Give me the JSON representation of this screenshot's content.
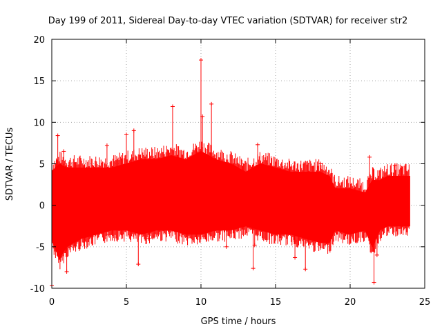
{
  "chart_data": {
    "type": "scatter",
    "title": "Day 199 of 2011, Sidereal Day-to-day VTEC variation (SDTVAR) for receiver str2",
    "xlabel": "GPS time / hours",
    "ylabel": "SDTVAR / TECUs",
    "xlim": [
      0,
      25
    ],
    "ylim": [
      -10,
      20
    ],
    "xticks": [
      0,
      5,
      10,
      15,
      20,
      25
    ],
    "yticks": [
      -10,
      -5,
      0,
      5,
      10,
      15,
      20
    ],
    "xtick_labels": [
      "0",
      "5",
      "10",
      "15",
      "20",
      "25"
    ],
    "ytick_labels": [
      "-10",
      "-5",
      "0",
      "5",
      "10",
      "15",
      "20"
    ],
    "grid": true,
    "marker": "+",
    "color": "#ff0000",
    "series": [
      {
        "name": "str2",
        "note": "dense 30-second samples rendered as a continuous band; envelope values below are read off the axes",
        "band": {
          "x": [
            0.0,
            0.5,
            1.0,
            2.0,
            3.0,
            4.0,
            5.0,
            6.0,
            7.0,
            8.0,
            9.0,
            10.0,
            11.0,
            12.0,
            13.0,
            14.0,
            15.0,
            16.0,
            17.0,
            18.0,
            18.6,
            19.0,
            20.0,
            21.0,
            21.5,
            22.0,
            22.5,
            23.0,
            24.0
          ],
          "upper": [
            4.0,
            5.0,
            4.5,
            4.5,
            4.5,
            4.5,
            5.0,
            5.5,
            5.5,
            6.0,
            5.5,
            6.5,
            5.5,
            5.0,
            4.0,
            5.0,
            4.5,
            4.0,
            4.0,
            4.0,
            3.5,
            2.0,
            2.0,
            1.5,
            3.0,
            3.0,
            3.5,
            3.5,
            3.5
          ],
          "lower": [
            -4.0,
            -6.5,
            -5.0,
            -4.0,
            -3.5,
            -3.0,
            -3.0,
            -3.5,
            -3.0,
            -3.0,
            -3.5,
            -3.5,
            -3.0,
            -3.0,
            -2.5,
            -3.0,
            -3.5,
            -3.5,
            -4.0,
            -4.5,
            -4.5,
            -3.0,
            -3.5,
            -3.0,
            -5.0,
            -3.0,
            -2.5,
            -2.5,
            -2.5
          ]
        },
        "points": [
          {
            "x": 0.0,
            "y": -9.7
          },
          {
            "x": 0.4,
            "y": 8.4
          },
          {
            "x": 0.8,
            "y": 6.5
          },
          {
            "x": 1.0,
            "y": -8.0
          },
          {
            "x": 2.7,
            "y": -3.8
          },
          {
            "x": 3.7,
            "y": 7.2
          },
          {
            "x": 3.8,
            "y": -3.5
          },
          {
            "x": 5.0,
            "y": 8.5
          },
          {
            "x": 5.5,
            "y": 9.0
          },
          {
            "x": 5.8,
            "y": -7.1
          },
          {
            "x": 6.5,
            "y": -4.0
          },
          {
            "x": 8.1,
            "y": 11.9
          },
          {
            "x": 10.0,
            "y": 17.5
          },
          {
            "x": 10.1,
            "y": 10.7
          },
          {
            "x": 10.7,
            "y": 12.2
          },
          {
            "x": 11.7,
            "y": -5.0
          },
          {
            "x": 13.5,
            "y": -7.6
          },
          {
            "x": 13.8,
            "y": 7.3
          },
          {
            "x": 13.6,
            "y": -4.8
          },
          {
            "x": 16.3,
            "y": -4.3
          },
          {
            "x": 16.3,
            "y": -6.3
          },
          {
            "x": 17.0,
            "y": -7.7
          },
          {
            "x": 18.0,
            "y": 5.0
          },
          {
            "x": 21.3,
            "y": 5.8
          },
          {
            "x": 21.6,
            "y": -9.3
          },
          {
            "x": 21.8,
            "y": -6.0
          },
          {
            "x": 23.0,
            "y": 4.8
          }
        ]
      }
    ]
  }
}
